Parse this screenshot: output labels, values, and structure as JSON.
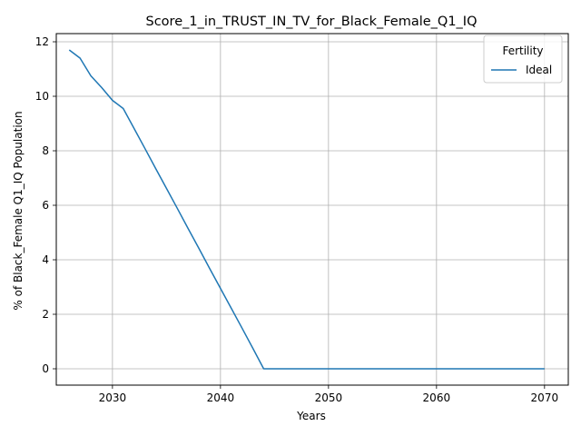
{
  "chart_data": {
    "type": "line",
    "title": "Score_1_in_TRUST_IN_TV_for_Black_Female_Q1_IQ",
    "xlabel": "Years",
    "ylabel": "% of Black_Female Q1_IQ Population",
    "xlim": [
      2024.8,
      2072.2
    ],
    "ylim": [
      -0.6,
      12.3
    ],
    "xticks": [
      2030,
      2040,
      2050,
      2060,
      2070
    ],
    "yticks": [
      0,
      2,
      4,
      6,
      8,
      10,
      12
    ],
    "grid": true,
    "legend": {
      "title": "Fertility",
      "placement": "top-right"
    },
    "series": [
      {
        "name": "Ideal",
        "color": "#1f77b4",
        "x": [
          2026,
          2027,
          2028,
          2029,
          2030,
          2031,
          2032,
          2033,
          2034,
          2035,
          2036,
          2037,
          2038,
          2039,
          2040,
          2041,
          2042,
          2043,
          2044,
          2045,
          2046,
          2047,
          2048,
          2049,
          2050,
          2051,
          2052,
          2053,
          2054,
          2055,
          2056,
          2057,
          2058,
          2059,
          2060,
          2061,
          2062,
          2063,
          2064,
          2065,
          2066,
          2067,
          2068,
          2069,
          2070
        ],
        "y": [
          11.7,
          11.4,
          10.75,
          10.32,
          9.85,
          9.55,
          8.82,
          8.09,
          7.35,
          6.62,
          5.89,
          5.15,
          4.42,
          3.68,
          2.95,
          2.22,
          1.49,
          0.75,
          0.0,
          0.0,
          0.0,
          0.0,
          0.0,
          0.0,
          0.0,
          0.0,
          0.0,
          0.0,
          0.0,
          0.0,
          0.0,
          0.0,
          0.0,
          0.0,
          0.0,
          0.0,
          0.0,
          0.0,
          0.0,
          0.0,
          0.0,
          0.0,
          0.0,
          0.0,
          0.0
        ]
      }
    ]
  }
}
